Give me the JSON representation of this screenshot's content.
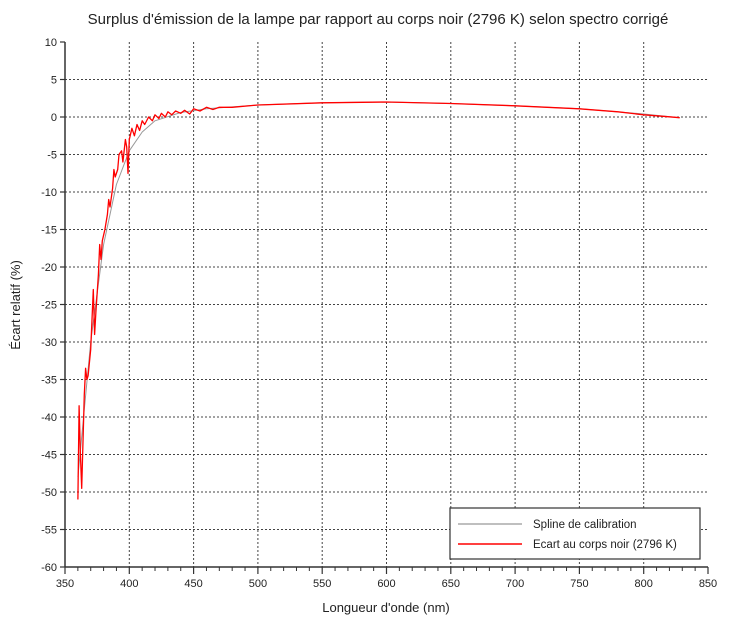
{
  "chart_data": {
    "type": "line",
    "title": "Surplus d'émission de la lampe par rapport au corps noir (2796 K) selon spectro corrigé",
    "xlabel": "Longueur d'onde (nm)",
    "ylabel": "Écart relatif (%)",
    "xlim": [
      350,
      850
    ],
    "ylim": [
      -60,
      10
    ],
    "xticks": [
      350,
      400,
      450,
      500,
      550,
      600,
      650,
      700,
      750,
      800,
      850
    ],
    "yticks": [
      10,
      5,
      0,
      -5,
      -10,
      -15,
      -20,
      -25,
      -30,
      -35,
      -40,
      -45,
      -50,
      -55,
      -60
    ],
    "grid": true,
    "legend_position": "bottom-right",
    "series": [
      {
        "name": "Spline de calibration",
        "color": "#999999",
        "x": [
          360,
          370,
          380,
          390,
          400,
          410,
          420,
          440,
          460,
          500,
          550,
          600,
          650,
          700,
          750,
          800,
          828
        ],
        "y": [
          -48,
          -30,
          -17,
          -9,
          -4.5,
          -2,
          -0.5,
          0.6,
          1.1,
          1.6,
          1.9,
          2.0,
          1.8,
          1.5,
          1.1,
          0.4,
          -0.1
        ]
      },
      {
        "name": "Ecart au corps noir (2796 K)",
        "color": "#ff0000",
        "x": [
          360,
          361,
          362,
          363,
          365,
          366,
          367,
          368,
          370,
          371,
          372,
          373,
          374,
          376,
          377,
          378,
          379,
          381,
          383,
          384,
          385,
          387,
          388,
          389,
          391,
          392,
          394,
          395,
          397,
          398,
          399,
          400,
          402,
          404,
          406,
          408,
          410,
          412,
          415,
          418,
          420,
          423,
          425,
          428,
          430,
          433,
          436,
          440,
          443,
          447,
          450,
          455,
          460,
          465,
          470,
          480,
          500,
          550,
          600,
          650,
          700,
          750,
          780,
          800,
          815,
          828
        ],
        "y": [
          -51,
          -38.5,
          -45,
          -49.5,
          -37,
          -33.5,
          -35,
          -34.5,
          -31,
          -27,
          -23,
          -29,
          -26,
          -21,
          -17,
          -19,
          -16.5,
          -15,
          -13,
          -11,
          -12,
          -9.5,
          -7,
          -8,
          -7,
          -5,
          -4.5,
          -6,
          -3,
          -4,
          -7.5,
          -3,
          -1.5,
          -2.5,
          -1,
          -1.8,
          -0.5,
          -1,
          0,
          -0.5,
          0.3,
          -0.2,
          0.5,
          0,
          0.7,
          0.3,
          0.8,
          0.5,
          0.9,
          0.4,
          1.1,
          0.8,
          1.3,
          1.0,
          1.3,
          1.3,
          1.6,
          1.9,
          2.0,
          1.8,
          1.5,
          1.1,
          0.7,
          0.3,
          0.1,
          -0.1
        ]
      }
    ]
  }
}
